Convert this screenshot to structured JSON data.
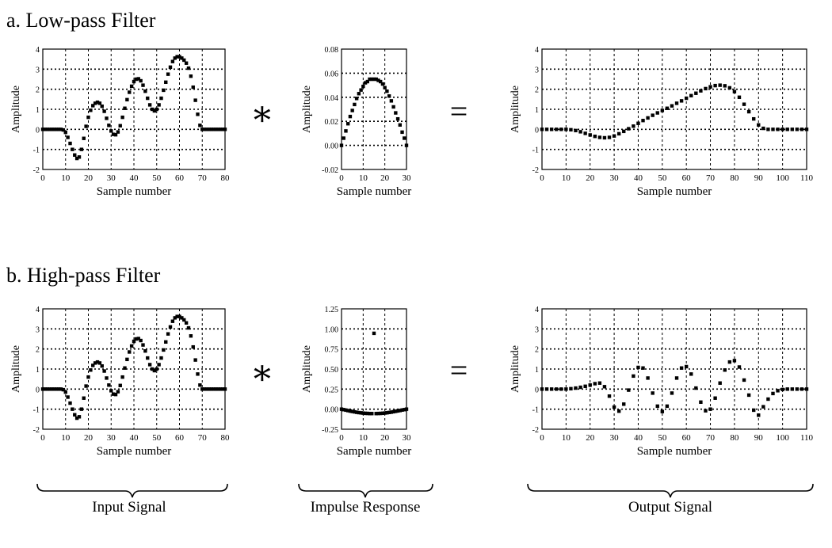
{
  "sections": [
    {
      "id": "a",
      "title": "a. Low-pass Filter"
    },
    {
      "id": "b",
      "title": "b. High-pass Filter"
    }
  ],
  "operators": {
    "convolve": "∗",
    "equals": "="
  },
  "braces": {
    "input": "Input Signal",
    "impulse": "Impulse Response",
    "output": "Output Signal"
  },
  "chart_data": [
    {
      "panel": "a-input",
      "type": "scatter",
      "xlabel": "Sample number",
      "ylabel": "Amplitude",
      "xlim": [
        0,
        80
      ],
      "ylim": [
        -2,
        4
      ],
      "xticks": [
        0,
        10,
        20,
        30,
        40,
        50,
        60,
        70,
        80
      ],
      "yticks": [
        -2,
        -1,
        0,
        1,
        2,
        3,
        4
      ],
      "ytick_labels": [
        "-2",
        "-1",
        "0",
        "1",
        "2",
        "3",
        "4"
      ],
      "grid": true,
      "x": [
        0,
        1,
        2,
        3,
        4,
        5,
        6,
        7,
        8,
        9,
        10,
        11,
        12,
        13,
        14,
        15,
        16,
        17,
        18,
        19,
        20,
        21,
        22,
        23,
        24,
        25,
        26,
        27,
        28,
        29,
        30,
        31,
        32,
        33,
        34,
        35,
        36,
        37,
        38,
        39,
        40,
        41,
        42,
        43,
        44,
        45,
        46,
        47,
        48,
        49,
        50,
        51,
        52,
        53,
        54,
        55,
        56,
        57,
        58,
        59,
        60,
        61,
        62,
        63,
        64,
        65,
        66,
        67,
        68,
        69,
        70,
        71,
        72,
        73,
        74,
        75,
        76,
        77,
        78,
        79,
        80
      ],
      "y": [
        0,
        0,
        0,
        0,
        0,
        0,
        0,
        0,
        0,
        -0.03,
        -0.15,
        -0.4,
        -0.7,
        -1.0,
        -1.28,
        -1.45,
        -1.38,
        -1.0,
        -0.45,
        0.15,
        0.6,
        0.95,
        1.18,
        1.3,
        1.35,
        1.3,
        1.15,
        0.9,
        0.55,
        0.2,
        -0.08,
        -0.25,
        -0.27,
        -0.13,
        0.18,
        0.6,
        1.05,
        1.48,
        1.85,
        2.15,
        2.38,
        2.5,
        2.52,
        2.42,
        2.2,
        1.9,
        1.55,
        1.22,
        1.0,
        0.92,
        1.0,
        1.22,
        1.55,
        1.95,
        2.35,
        2.75,
        3.1,
        3.38,
        3.55,
        3.62,
        3.62,
        3.55,
        3.45,
        3.3,
        3.05,
        2.65,
        2.1,
        1.45,
        0.75,
        0.2,
        0,
        0,
        0,
        0,
        0,
        0,
        0,
        0,
        0,
        0,
        0
      ]
    },
    {
      "panel": "a-impulse",
      "type": "scatter",
      "xlabel": "Sample number",
      "ylabel": "Amplitude",
      "xlim": [
        0,
        30
      ],
      "ylim": [
        -0.02,
        0.08
      ],
      "xticks": [
        0,
        10,
        20,
        30
      ],
      "yticks": [
        -0.02,
        0,
        0.02,
        0.04,
        0.06,
        0.08
      ],
      "ytick_labels": [
        "-0.02",
        "0.00",
        "0.02",
        "0.04",
        "0.06",
        "0.08"
      ],
      "grid": true,
      "x": [
        0,
        1,
        2,
        3,
        4,
        5,
        6,
        7,
        8,
        9,
        10,
        11,
        12,
        13,
        14,
        15,
        16,
        17,
        18,
        19,
        20,
        21,
        22,
        23,
        24,
        25,
        26,
        27,
        28,
        29,
        30
      ],
      "y": [
        0,
        0.006,
        0.012,
        0.018,
        0.024,
        0.029,
        0.034,
        0.039,
        0.043,
        0.046,
        0.049,
        0.052,
        0.053,
        0.055,
        0.055,
        0.055,
        0.055,
        0.054,
        0.053,
        0.051,
        0.048,
        0.045,
        0.041,
        0.037,
        0.032,
        0.027,
        0.022,
        0.017,
        0.011,
        0.006,
        0
      ]
    },
    {
      "panel": "a-output",
      "type": "scatter",
      "xlabel": "Sample number",
      "ylabel": "Amplitude",
      "xlim": [
        0,
        110
      ],
      "ylim": [
        -2,
        4
      ],
      "xticks": [
        0,
        10,
        20,
        30,
        40,
        50,
        60,
        70,
        80,
        90,
        100,
        110
      ],
      "yticks": [
        -2,
        -1,
        0,
        1,
        2,
        3,
        4
      ],
      "ytick_labels": [
        "-2",
        "-1",
        "0",
        "1",
        "2",
        "3",
        "4"
      ],
      "grid": true,
      "x": [
        0,
        2,
        4,
        6,
        8,
        10,
        12,
        14,
        16,
        18,
        20,
        22,
        24,
        26,
        28,
        30,
        32,
        34,
        36,
        38,
        40,
        42,
        44,
        46,
        48,
        50,
        52,
        54,
        56,
        58,
        60,
        62,
        64,
        66,
        68,
        70,
        72,
        74,
        76,
        78,
        80,
        82,
        84,
        86,
        88,
        90,
        92,
        94,
        96,
        98,
        100,
        102,
        104,
        106,
        108,
        110
      ],
      "y": [
        0,
        0,
        0,
        0,
        0,
        0,
        -0.02,
        -0.06,
        -0.12,
        -0.2,
        -0.28,
        -0.35,
        -0.4,
        -0.42,
        -0.4,
        -0.33,
        -0.22,
        -0.1,
        0.03,
        0.16,
        0.3,
        0.44,
        0.57,
        0.7,
        0.82,
        0.94,
        1.05,
        1.17,
        1.3,
        1.42,
        1.55,
        1.68,
        1.8,
        1.92,
        2.03,
        2.12,
        2.18,
        2.2,
        2.17,
        2.07,
        1.88,
        1.6,
        1.25,
        0.88,
        0.52,
        0.22,
        0.05,
        0,
        0,
        0,
        0,
        0,
        0,
        0,
        0,
        0
      ]
    },
    {
      "panel": "b-input",
      "type": "scatter",
      "xlabel": "Sample number",
      "ylabel": "Amplitude",
      "xlim": [
        0,
        80
      ],
      "ylim": [
        -2,
        4
      ],
      "xticks": [
        0,
        10,
        20,
        30,
        40,
        50,
        60,
        70,
        80
      ],
      "yticks": [
        -2,
        -1,
        0,
        1,
        2,
        3,
        4
      ],
      "ytick_labels": [
        "-2",
        "-1",
        "0",
        "1",
        "2",
        "3",
        "4"
      ],
      "grid": true,
      "x": [
        0,
        1,
        2,
        3,
        4,
        5,
        6,
        7,
        8,
        9,
        10,
        11,
        12,
        13,
        14,
        15,
        16,
        17,
        18,
        19,
        20,
        21,
        22,
        23,
        24,
        25,
        26,
        27,
        28,
        29,
        30,
        31,
        32,
        33,
        34,
        35,
        36,
        37,
        38,
        39,
        40,
        41,
        42,
        43,
        44,
        45,
        46,
        47,
        48,
        49,
        50,
        51,
        52,
        53,
        54,
        55,
        56,
        57,
        58,
        59,
        60,
        61,
        62,
        63,
        64,
        65,
        66,
        67,
        68,
        69,
        70,
        71,
        72,
        73,
        74,
        75,
        76,
        77,
        78,
        79,
        80
      ],
      "y": [
        0,
        0,
        0,
        0,
        0,
        0,
        0,
        0,
        0,
        -0.03,
        -0.15,
        -0.4,
        -0.7,
        -1.0,
        -1.28,
        -1.45,
        -1.38,
        -1.0,
        -0.45,
        0.15,
        0.6,
        0.95,
        1.18,
        1.3,
        1.35,
        1.3,
        1.15,
        0.9,
        0.55,
        0.2,
        -0.08,
        -0.25,
        -0.27,
        -0.13,
        0.18,
        0.6,
        1.05,
        1.48,
        1.85,
        2.15,
        2.38,
        2.5,
        2.52,
        2.42,
        2.2,
        1.9,
        1.55,
        1.22,
        1.0,
        0.92,
        1.0,
        1.22,
        1.55,
        1.95,
        2.35,
        2.75,
        3.1,
        3.38,
        3.55,
        3.62,
        3.62,
        3.55,
        3.45,
        3.3,
        3.05,
        2.65,
        2.1,
        1.45,
        0.75,
        0.2,
        0,
        0,
        0,
        0,
        0,
        0,
        0,
        0,
        0,
        0,
        0
      ]
    },
    {
      "panel": "b-impulse",
      "type": "scatter",
      "xlabel": "Sample number",
      "ylabel": "Amplitude",
      "xlim": [
        0,
        30
      ],
      "ylim": [
        -0.25,
        1.25
      ],
      "xticks": [
        0,
        10,
        20,
        30
      ],
      "yticks": [
        -0.25,
        0,
        0.25,
        0.5,
        0.75,
        1.0,
        1.25
      ],
      "ytick_labels": [
        "-0.25",
        "0.00",
        "0.25",
        "0.50",
        "0.75",
        "1.00",
        "1.25"
      ],
      "grid": true,
      "x": [
        0,
        1,
        2,
        3,
        4,
        5,
        6,
        7,
        8,
        9,
        10,
        11,
        12,
        13,
        14,
        15,
        16,
        17,
        18,
        19,
        20,
        21,
        22,
        23,
        24,
        25,
        26,
        27,
        28,
        29,
        30
      ],
      "y": [
        0,
        -0.006,
        -0.012,
        -0.018,
        -0.024,
        -0.029,
        -0.034,
        -0.039,
        -0.043,
        -0.046,
        -0.049,
        -0.052,
        -0.053,
        -0.055,
        -0.055,
        0.945,
        -0.055,
        -0.054,
        -0.053,
        -0.051,
        -0.048,
        -0.045,
        -0.041,
        -0.037,
        -0.032,
        -0.027,
        -0.022,
        -0.017,
        -0.011,
        -0.006,
        0
      ]
    },
    {
      "panel": "b-output",
      "type": "scatter",
      "xlabel": "Sample number",
      "ylabel": "Amplitude",
      "xlim": [
        0,
        110
      ],
      "ylim": [
        -2,
        4
      ],
      "xticks": [
        0,
        10,
        20,
        30,
        40,
        50,
        60,
        70,
        80,
        90,
        100,
        110
      ],
      "yticks": [
        -2,
        -1,
        0,
        1,
        2,
        3,
        4
      ],
      "ytick_labels": [
        "-2",
        "-1",
        "0",
        "1",
        "2",
        "3",
        "4"
      ],
      "grid": true,
      "x": [
        0,
        2,
        4,
        6,
        8,
        10,
        12,
        14,
        16,
        18,
        20,
        22,
        24,
        26,
        28,
        30,
        32,
        34,
        36,
        38,
        40,
        42,
        44,
        46,
        48,
        50,
        52,
        54,
        56,
        58,
        60,
        62,
        64,
        66,
        68,
        70,
        72,
        74,
        76,
        78,
        80,
        82,
        84,
        86,
        88,
        90,
        92,
        94,
        96,
        98,
        100,
        102,
        104,
        106,
        108,
        110
      ],
      "y": [
        0,
        0,
        0,
        0,
        0,
        0,
        0.02,
        0.05,
        0.09,
        0.14,
        0.2,
        0.27,
        0.3,
        0.12,
        -0.35,
        -0.9,
        -1.1,
        -0.75,
        -0.05,
        0.65,
        1.08,
        1.05,
        0.55,
        -0.2,
        -0.85,
        -1.12,
        -0.85,
        -0.2,
        0.55,
        1.05,
        1.12,
        0.75,
        0.05,
        -0.65,
        -1.08,
        -1.0,
        -0.45,
        0.3,
        0.95,
        1.35,
        1.42,
        1.1,
        0.45,
        -0.3,
        -1.05,
        -1.3,
        -0.88,
        -0.5,
        -0.22,
        -0.08,
        -0.02,
        0,
        0,
        0,
        0,
        0
      ]
    }
  ]
}
